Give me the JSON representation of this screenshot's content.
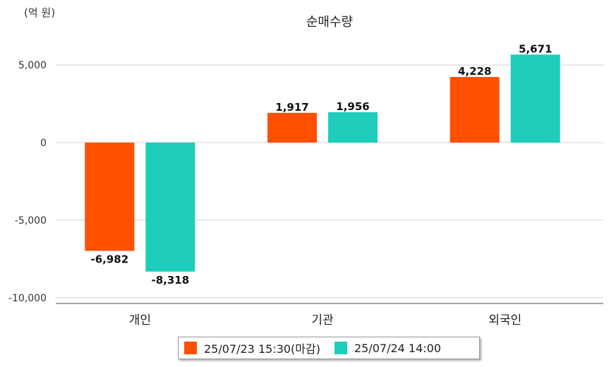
{
  "chart_data": {
    "type": "bar",
    "title": "순매수량",
    "unit_label": "(억 원)",
    "categories": [
      "개인",
      "기관",
      "외국인"
    ],
    "series": [
      {
        "name": "25/07/23 15:30(마감)",
        "color": "#ff5000",
        "values": [
          -6982,
          1917,
          4228
        ],
        "labels": [
          "-6,982",
          "1,917",
          "4,228"
        ]
      },
      {
        "name": "25/07/24 14:00",
        "color": "#1ecdbc",
        "values": [
          -8318,
          1956,
          5671
        ],
        "labels": [
          "-8,318",
          "1,956",
          "5,671"
        ]
      }
    ],
    "yticks": [
      5000,
      0,
      -5000,
      -10000
    ],
    "ytick_labels": [
      "5,000",
      "0",
      "-5,000",
      "-10,000"
    ],
    "ylim": [
      -10500,
      6500
    ],
    "grid": true,
    "legend_position": "bottom"
  }
}
